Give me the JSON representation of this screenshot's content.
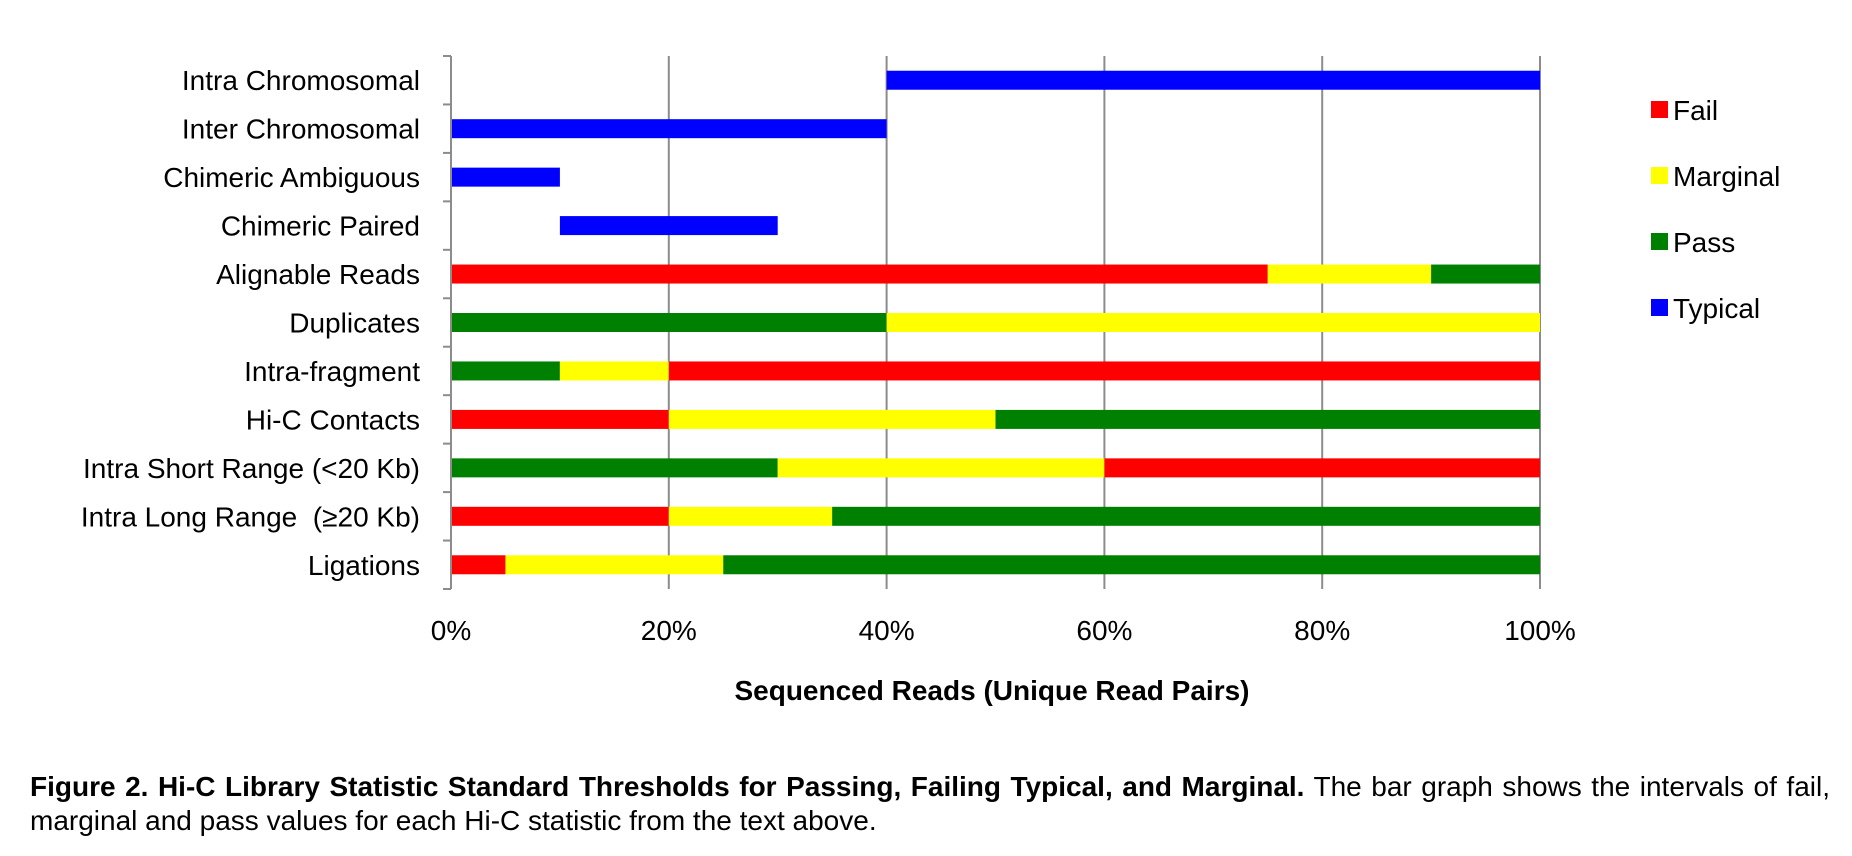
{
  "chart_data": {
    "type": "bar",
    "orientation": "horizontal",
    "stacked_intervals": true,
    "xlabel": "Sequenced Reads (Unique Read Pairs)",
    "xlim": [
      0,
      100
    ],
    "xticks": [
      "0%",
      "20%",
      "40%",
      "60%",
      "80%",
      "100%"
    ],
    "grid": "vertical",
    "legend_position": "right",
    "legend": [
      {
        "name": "Fail",
        "color": "#FF0000"
      },
      {
        "name": "Marginal",
        "color": "#FFFF00"
      },
      {
        "name": "Pass",
        "color": "#008000"
      },
      {
        "name": "Typical",
        "color": "#0000FF"
      }
    ],
    "categories": [
      "Intra Chromosomal",
      "Inter Chromosomal",
      "Chimeric Ambiguous",
      "Chimeric Paired",
      "Alignable Reads",
      "Duplicates",
      "Intra-fragment",
      "Hi-C Contacts",
      "Intra Short Range (<20 Kb)",
      "Intra Long Range  (≥20 Kb)",
      "Ligations"
    ],
    "rows": [
      {
        "category": "Intra Chromosomal",
        "segments": [
          {
            "class": "Typical",
            "start": 40,
            "end": 100
          }
        ]
      },
      {
        "category": "Inter Chromosomal",
        "segments": [
          {
            "class": "Typical",
            "start": 0,
            "end": 40
          }
        ]
      },
      {
        "category": "Chimeric Ambiguous",
        "segments": [
          {
            "class": "Typical",
            "start": 0,
            "end": 10
          }
        ]
      },
      {
        "category": "Chimeric Paired",
        "segments": [
          {
            "class": "Typical",
            "start": 10,
            "end": 30
          }
        ]
      },
      {
        "category": "Alignable Reads",
        "segments": [
          {
            "class": "Fail",
            "start": 0,
            "end": 75
          },
          {
            "class": "Marginal",
            "start": 75,
            "end": 90
          },
          {
            "class": "Pass",
            "start": 90,
            "end": 100
          }
        ]
      },
      {
        "category": "Duplicates",
        "segments": [
          {
            "class": "Pass",
            "start": 0,
            "end": 40
          },
          {
            "class": "Marginal",
            "start": 40,
            "end": 100
          }
        ]
      },
      {
        "category": "Intra-fragment",
        "segments": [
          {
            "class": "Pass",
            "start": 0,
            "end": 10
          },
          {
            "class": "Marginal",
            "start": 10,
            "end": 20
          },
          {
            "class": "Fail",
            "start": 20,
            "end": 100
          }
        ]
      },
      {
        "category": "Hi-C Contacts",
        "segments": [
          {
            "class": "Fail",
            "start": 0,
            "end": 20
          },
          {
            "class": "Marginal",
            "start": 20,
            "end": 50
          },
          {
            "class": "Pass",
            "start": 50,
            "end": 100
          }
        ]
      },
      {
        "category": "Intra Short Range (<20 Kb)",
        "segments": [
          {
            "class": "Pass",
            "start": 0,
            "end": 30
          },
          {
            "class": "Marginal",
            "start": 30,
            "end": 60
          },
          {
            "class": "Fail",
            "start": 60,
            "end": 100
          }
        ]
      },
      {
        "category": "Intra Long Range  (≥20 Kb)",
        "segments": [
          {
            "class": "Fail",
            "start": 0,
            "end": 20
          },
          {
            "class": "Marginal",
            "start": 20,
            "end": 35
          },
          {
            "class": "Pass",
            "start": 35,
            "end": 100
          }
        ]
      },
      {
        "category": "Ligations",
        "segments": [
          {
            "class": "Fail",
            "start": 0,
            "end": 5
          },
          {
            "class": "Marginal",
            "start": 5,
            "end": 25
          },
          {
            "class": "Pass",
            "start": 25,
            "end": 100
          }
        ]
      }
    ]
  },
  "caption": {
    "bold": "Figure 2. Hi-C Library Statistic Standard Thresholds for Passing, Failing Typical, and Marginal.",
    "text": " The bar graph shows the intervals of fail, marginal and pass values for each Hi-C statistic from the text above."
  }
}
